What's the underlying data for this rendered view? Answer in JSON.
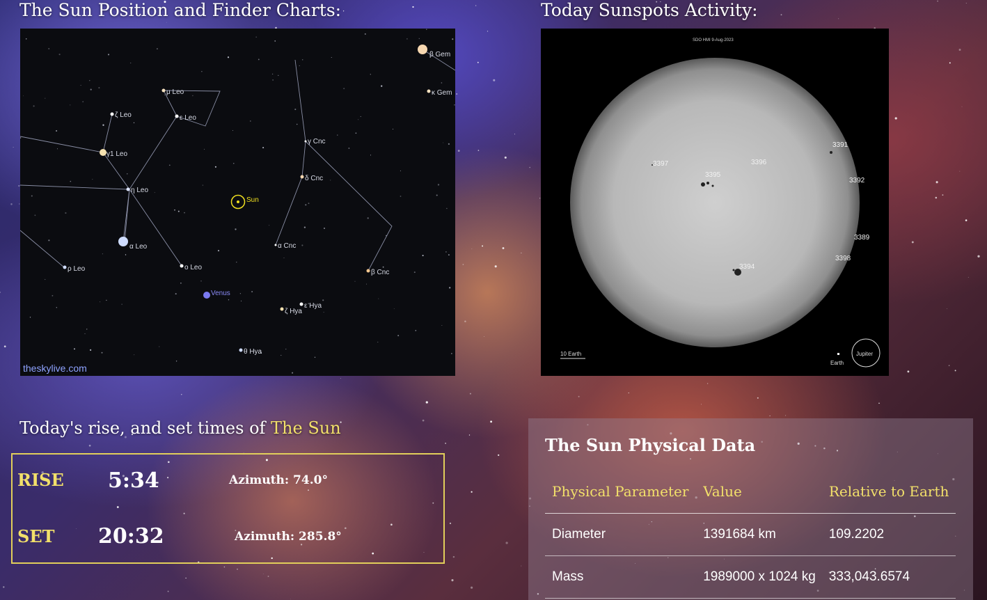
{
  "finder": {
    "heading": "The Sun Position and Finder Charts:",
    "watermark": "theskylive.com",
    "labels": {
      "beta_gem": "β Gem",
      "kappa_gem": "κ Gem",
      "mu_leo": "μ Leo",
      "zeta_leo": "ζ Leo",
      "epsilon_leo": "ε Leo",
      "gamma_leo": "γ1 Leo",
      "gamma_cnc": "γ Cnc",
      "eta_leo": "η Leo",
      "delta_cnc": "δ Cnc",
      "sun": "Sun",
      "alpha_leo": "α Leo",
      "alpha_cnc": "α Cnc",
      "rho_leo": "ρ Leo",
      "omicron_leo": "o Leo",
      "beta_cnc": "β Cnc",
      "venus": "Venus",
      "epsilon_hya": "ε Hya",
      "zeta_hya": "ζ Hya",
      "theta_hya": "θ Hya"
    }
  },
  "sunspots": {
    "heading": "Today Sunspots Activity:",
    "caption": "SDO HMI   9-Aug-2023",
    "regions": [
      "3391",
      "3397",
      "3396",
      "3395",
      "3392",
      "3389",
      "3398",
      "3394"
    ],
    "scale_earth_label": "10 Earth",
    "earth_label": "Earth",
    "jupiter_label": "Jupiter"
  },
  "rise_set": {
    "heading_prefix": "Today's rise, and set times of ",
    "heading_object": "The Sun",
    "rise_label": "RISE",
    "rise_time": "5:34",
    "rise_azimuth": "Azimuth: 74.0°",
    "set_label": "SET",
    "set_time": "20:32",
    "set_azimuth": "Azimuth: 285.8°"
  },
  "physical": {
    "title": "The Sun Physical Data",
    "columns": [
      "Physical Parameter",
      "Value",
      "Relative to Earth"
    ],
    "rows": [
      {
        "param": "Diameter",
        "value": "1391684 km",
        "relative": "109.2202"
      },
      {
        "param": "Mass",
        "value": "1989000 x 1024 kg",
        "relative": "333,043.6574"
      }
    ]
  },
  "colors": {
    "accent": "#f2e06a",
    "sun_marker": "#f0e020",
    "venus": "#7a7af0"
  }
}
